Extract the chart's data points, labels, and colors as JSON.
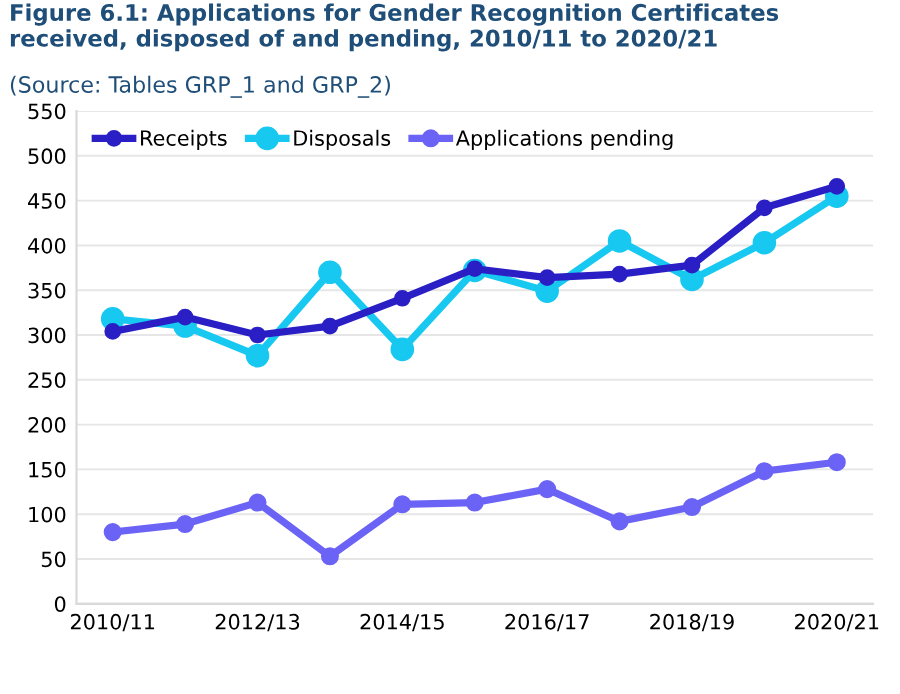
{
  "chart_data": {
    "type": "line",
    "title": "Figure 6.1: Applications for Gender Recognition Certificates received, disposed of and pending, 2010/11 to 2020/21",
    "annotations": [
      "(Source: Tables GRP_1 and GRP_2)"
    ],
    "categories": [
      "2010/11",
      null,
      "2012/13",
      null,
      "2014/15",
      null,
      "2016/17",
      null,
      "2018/19",
      null,
      "2020/21"
    ],
    "series": [
      {
        "name": "Receipts",
        "color": "#2a1fc4",
        "values": [
          304,
          320,
          300,
          310,
          341,
          374,
          364,
          368,
          378,
          442,
          466
        ]
      },
      {
        "name": "Disposals",
        "color": "#17c8f0",
        "values": [
          318,
          310,
          277,
          370,
          284,
          372,
          349,
          405,
          362,
          403,
          455
        ]
      },
      {
        "name": "Applications pending",
        "color": "#6b63f5",
        "values": [
          80,
          89,
          113,
          53,
          111,
          113,
          128,
          92,
          108,
          148,
          158
        ]
      }
    ],
    "ylim": [
      0,
      550
    ],
    "yticks": [
      0,
      50,
      100,
      150,
      200,
      250,
      300,
      350,
      400,
      450,
      500,
      550
    ],
    "grid": "y",
    "legend": "top left",
    "marker": "circle",
    "line_style": "solid"
  }
}
